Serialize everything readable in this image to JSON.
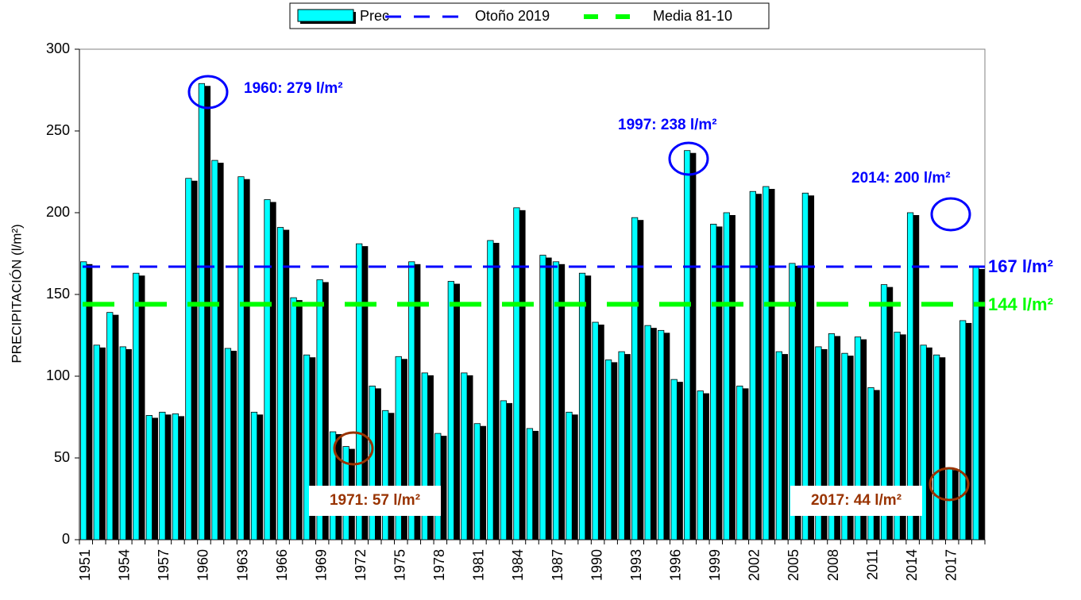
{
  "chart_data": {
    "type": "bar",
    "ylabel": "PRECIPITACIÓN (l/m²)",
    "categories": [
      "1951",
      null,
      null,
      "1954",
      null,
      null,
      "1957",
      null,
      null,
      "1960",
      null,
      null,
      "1963",
      null,
      null,
      "1966",
      null,
      null,
      "1969",
      null,
      null,
      "1972",
      null,
      null,
      "1975",
      null,
      null,
      "1978",
      null,
      null,
      "1981",
      null,
      null,
      "1984",
      null,
      null,
      "1987",
      null,
      null,
      "1990",
      null,
      null,
      "1993",
      null,
      null,
      "1996",
      null,
      null,
      "1999",
      null,
      null,
      "2002",
      null,
      null,
      "2005",
      null,
      null,
      "2008",
      null,
      null,
      "2011",
      null,
      null,
      "2014",
      null,
      null,
      "2017",
      null,
      null
    ],
    "series": [
      {
        "name": "Prec",
        "color": "#00ffff",
        "values": [
          170,
          119,
          139,
          118,
          163,
          76,
          78,
          77,
          221,
          279,
          232,
          117,
          222,
          78,
          208,
          191,
          148,
          113,
          159,
          66,
          57,
          181,
          94,
          79,
          112,
          170,
          102,
          65,
          158,
          102,
          71,
          183,
          85,
          203,
          68,
          174,
          170,
          78,
          163,
          133,
          110,
          115,
          197,
          131,
          128,
          98,
          238,
          91,
          193,
          200,
          94,
          213,
          216,
          115,
          169,
          212,
          118,
          126,
          114,
          124,
          93,
          156,
          127,
          200,
          119,
          113,
          44,
          134,
          167
        ]
      }
    ],
    "reference_lines": [
      {
        "name": "Otoño 2019",
        "color": "#0000ff",
        "value": 167,
        "value_label": "167 l/m²"
      },
      {
        "name": "Media 81-10",
        "color": "#00ff00",
        "value": 144,
        "value_label": "144 l/m²"
      }
    ],
    "annotations": [
      {
        "text": "1960: 279 l/m²",
        "color": "#0000ff"
      },
      {
        "text": "1997: 238 l/m²",
        "color": "#0000ff"
      },
      {
        "text": "2014: 200 l/m²",
        "color": "#0000ff"
      },
      {
        "text": "1971: 57 l/m²",
        "color": "#993300"
      },
      {
        "text": "2017: 44 l/m²",
        "color": "#993300"
      }
    ],
    "ylim": [
      0,
      300
    ],
    "yticks": [
      0,
      50,
      100,
      150,
      200,
      250,
      300
    ]
  }
}
